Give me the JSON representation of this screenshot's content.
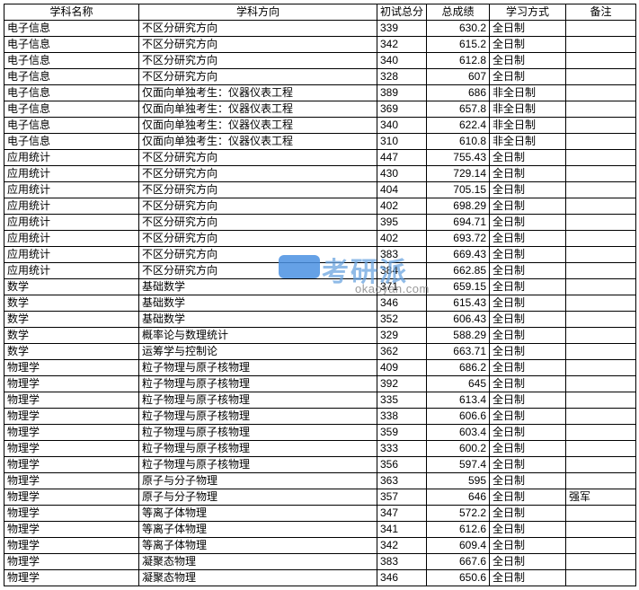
{
  "watermark": {
    "badge_text": "",
    "main_text": "考研派",
    "url_text": "okaoyan.com"
  },
  "table": {
    "headers": {
      "col0": "学科名称",
      "col1": "学科方向",
      "col2": "初试总分",
      "col3": "总成绩",
      "col4": "学习方式",
      "col5": "备注"
    },
    "rows": [
      {
        "c0": "电子信息",
        "c1": "不区分研究方向",
        "c2": "339",
        "c3": "630.2",
        "c4": "全日制",
        "c5": ""
      },
      {
        "c0": "电子信息",
        "c1": "不区分研究方向",
        "c2": "342",
        "c3": "615.2",
        "c4": "全日制",
        "c5": ""
      },
      {
        "c0": "电子信息",
        "c1": "不区分研究方向",
        "c2": "340",
        "c3": "612.8",
        "c4": "全日制",
        "c5": ""
      },
      {
        "c0": "电子信息",
        "c1": "不区分研究方向",
        "c2": "328",
        "c3": "607",
        "c4": "全日制",
        "c5": ""
      },
      {
        "c0": "电子信息",
        "c1": "仅面向单独考生：仪器仪表工程",
        "c2": "389",
        "c3": "686",
        "c4": "非全日制",
        "c5": ""
      },
      {
        "c0": "电子信息",
        "c1": "仅面向单独考生：仪器仪表工程",
        "c2": "369",
        "c3": "657.8",
        "c4": "非全日制",
        "c5": ""
      },
      {
        "c0": "电子信息",
        "c1": "仅面向单独考生：仪器仪表工程",
        "c2": "340",
        "c3": "622.4",
        "c4": "非全日制",
        "c5": ""
      },
      {
        "c0": "电子信息",
        "c1": "仅面向单独考生：仪器仪表工程",
        "c2": "310",
        "c3": "610.8",
        "c4": "非全日制",
        "c5": ""
      },
      {
        "c0": "应用统计",
        "c1": "不区分研究方向",
        "c2": "447",
        "c3": "755.43",
        "c4": "全日制",
        "c5": ""
      },
      {
        "c0": "应用统计",
        "c1": "不区分研究方向",
        "c2": "430",
        "c3": "729.14",
        "c4": "全日制",
        "c5": ""
      },
      {
        "c0": "应用统计",
        "c1": "不区分研究方向",
        "c2": "404",
        "c3": "705.15",
        "c4": "全日制",
        "c5": ""
      },
      {
        "c0": "应用统计",
        "c1": "不区分研究方向",
        "c2": "402",
        "c3": "698.29",
        "c4": "全日制",
        "c5": ""
      },
      {
        "c0": "应用统计",
        "c1": "不区分研究方向",
        "c2": "395",
        "c3": "694.71",
        "c4": "全日制",
        "c5": ""
      },
      {
        "c0": "应用统计",
        "c1": "不区分研究方向",
        "c2": "402",
        "c3": "693.72",
        "c4": "全日制",
        "c5": ""
      },
      {
        "c0": "应用统计",
        "c1": "不区分研究方向",
        "c2": "383",
        "c3": "669.43",
        "c4": "全日制",
        "c5": ""
      },
      {
        "c0": "应用统计",
        "c1": "不区分研究方向",
        "c2": "384",
        "c3": "662.85",
        "c4": "全日制",
        "c5": ""
      },
      {
        "c0": "数学",
        "c1": "基础数学",
        "c2": "371",
        "c3": "659.15",
        "c4": "全日制",
        "c5": ""
      },
      {
        "c0": "数学",
        "c1": "基础数学",
        "c2": "346",
        "c3": "615.43",
        "c4": "全日制",
        "c5": ""
      },
      {
        "c0": "数学",
        "c1": "基础数学",
        "c2": "352",
        "c3": "606.43",
        "c4": "全日制",
        "c5": ""
      },
      {
        "c0": "数学",
        "c1": "概率论与数理统计",
        "c2": "329",
        "c3": "588.29",
        "c4": "全日制",
        "c5": ""
      },
      {
        "c0": "数学",
        "c1": "运筹学与控制论",
        "c2": "362",
        "c3": "663.71",
        "c4": "全日制",
        "c5": ""
      },
      {
        "c0": "物理学",
        "c1": "粒子物理与原子核物理",
        "c2": "409",
        "c3": "686.2",
        "c4": "全日制",
        "c5": ""
      },
      {
        "c0": "物理学",
        "c1": "粒子物理与原子核物理",
        "c2": "392",
        "c3": "645",
        "c4": "全日制",
        "c5": ""
      },
      {
        "c0": "物理学",
        "c1": "粒子物理与原子核物理",
        "c2": "335",
        "c3": "613.4",
        "c4": "全日制",
        "c5": ""
      },
      {
        "c0": "物理学",
        "c1": "粒子物理与原子核物理",
        "c2": "338",
        "c3": "606.6",
        "c4": "全日制",
        "c5": ""
      },
      {
        "c0": "物理学",
        "c1": "粒子物理与原子核物理",
        "c2": "359",
        "c3": "603.4",
        "c4": "全日制",
        "c5": ""
      },
      {
        "c0": "物理学",
        "c1": "粒子物理与原子核物理",
        "c2": "333",
        "c3": "600.2",
        "c4": "全日制",
        "c5": ""
      },
      {
        "c0": "物理学",
        "c1": "粒子物理与原子核物理",
        "c2": "356",
        "c3": "597.4",
        "c4": "全日制",
        "c5": ""
      },
      {
        "c0": "物理学",
        "c1": "原子与分子物理",
        "c2": "363",
        "c3": "595",
        "c4": "全日制",
        "c5": ""
      },
      {
        "c0": "物理学",
        "c1": "原子与分子物理",
        "c2": "357",
        "c3": "646",
        "c4": "全日制",
        "c5": "强军"
      },
      {
        "c0": "物理学",
        "c1": "等离子体物理",
        "c2": "347",
        "c3": "572.2",
        "c4": "全日制",
        "c5": ""
      },
      {
        "c0": "物理学",
        "c1": "等离子体物理",
        "c2": "341",
        "c3": "612.6",
        "c4": "全日制",
        "c5": ""
      },
      {
        "c0": "物理学",
        "c1": "等离子体物理",
        "c2": "342",
        "c3": "609.4",
        "c4": "全日制",
        "c5": ""
      },
      {
        "c0": "物理学",
        "c1": "凝聚态物理",
        "c2": "383",
        "c3": "667.6",
        "c4": "全日制",
        "c5": ""
      },
      {
        "c0": "物理学",
        "c1": "凝聚态物理",
        "c2": "346",
        "c3": "650.6",
        "c4": "全日制",
        "c5": ""
      }
    ]
  }
}
